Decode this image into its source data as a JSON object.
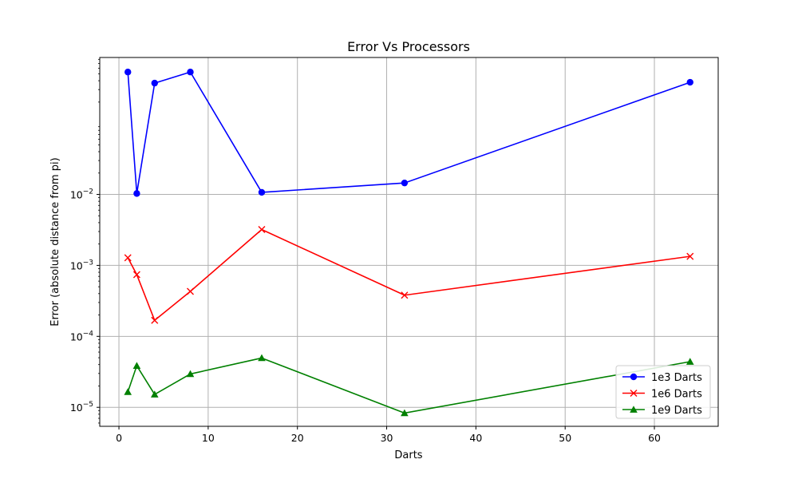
{
  "chart_data": {
    "type": "line",
    "title": "Error Vs Processors",
    "xlabel": "Darts",
    "ylabel": "Error (absolute distance from pi)",
    "xlim": [
      -2.15,
      67.15
    ],
    "ylim": [
      5.4e-06,
      0.85
    ],
    "yscale": "log",
    "grid": true,
    "legend_position": "lower-right",
    "x_ticks": [
      0,
      10,
      20,
      30,
      40,
      50,
      60
    ],
    "y_ticks": [
      {
        "value": 1e-05,
        "base": "10",
        "exp": "−5"
      },
      {
        "value": 0.0001,
        "base": "10",
        "exp": "−4"
      },
      {
        "value": 0.001,
        "base": "10",
        "exp": "−3"
      },
      {
        "value": 0.01,
        "base": "10",
        "exp": "−2"
      }
    ],
    "x": [
      1,
      2,
      4,
      8,
      16,
      32,
      64
    ],
    "series": [
      {
        "name": "1e3 Darts",
        "color": "#0000ff",
        "marker": "circle",
        "values": [
          0.53,
          0.0103,
          0.37,
          0.53,
          0.0107,
          0.0145,
          0.38
        ]
      },
      {
        "name": "1e6 Darts",
        "color": "#ff0000",
        "marker": "x",
        "values": [
          0.00128,
          0.00074,
          0.000168,
          0.00043,
          0.0032,
          0.00038,
          0.00134
        ]
      },
      {
        "name": "1e9 Darts",
        "color": "#008000",
        "marker": "triangle",
        "values": [
          1.65e-05,
          3.85e-05,
          1.52e-05,
          2.95e-05,
          4.95e-05,
          8.3e-06,
          4.4e-05
        ]
      }
    ]
  }
}
